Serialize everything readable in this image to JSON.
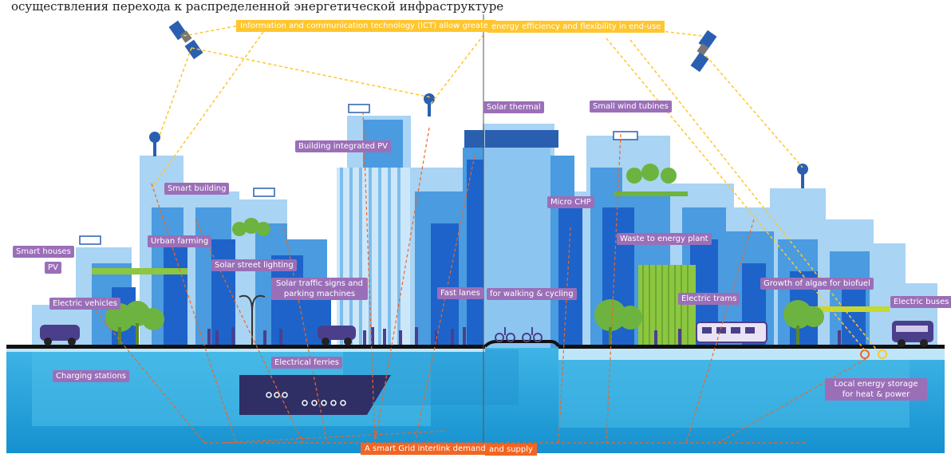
{
  "caption": "осуществления перехода к распределенной энергетической инфраструктуре",
  "ict": {
    "left": "Information and communication technology (ICT) allow greater",
    "right": "energy efficiency and flexibility in end-use"
  },
  "smart_grid": {
    "left": "A smart Grid interlink demand",
    "right": "and supply"
  },
  "labels": {
    "smart_houses": "Smart houses",
    "pv": "PV",
    "electric_vehicles": "Electric vehicles",
    "charging_stations": "Charging stations",
    "smart_building": "Smart building",
    "urban_farming": "Urban farming",
    "solar_street_lighting": "Solar street lighting",
    "solar_traffic_signs": "Solar traffic signs and parking machines",
    "building_integrated_pv": "Building integrated PV",
    "fast_lanes": "Fast lanes",
    "walking_cycling": "for walking & cycling",
    "solar_thermal": "Solar thermal",
    "micro_chp": "Micro CHP",
    "small_wind": "Small wind tubines",
    "waste_to_energy": "Waste to energy plant",
    "electric_trams": "Electric trams",
    "algae_biofuel": "Growth of algae for biofuel",
    "electric_buses": "Electric buses",
    "electrical_ferries": "Electrical ferries",
    "local_storage": "Local energy storage for heat & power"
  },
  "colors": {
    "sky_building_light": "#a9d4f3",
    "building_mid": "#4a9be0",
    "building_dark": "#1e63c9",
    "water": "#29a7de",
    "label_purple": "#9b6fb8",
    "ict_yellow": "#ffc62e",
    "grid_orange": "#f26522",
    "vehicle_purple": "#4b3f8c",
    "tree_green": "#6db33f"
  }
}
